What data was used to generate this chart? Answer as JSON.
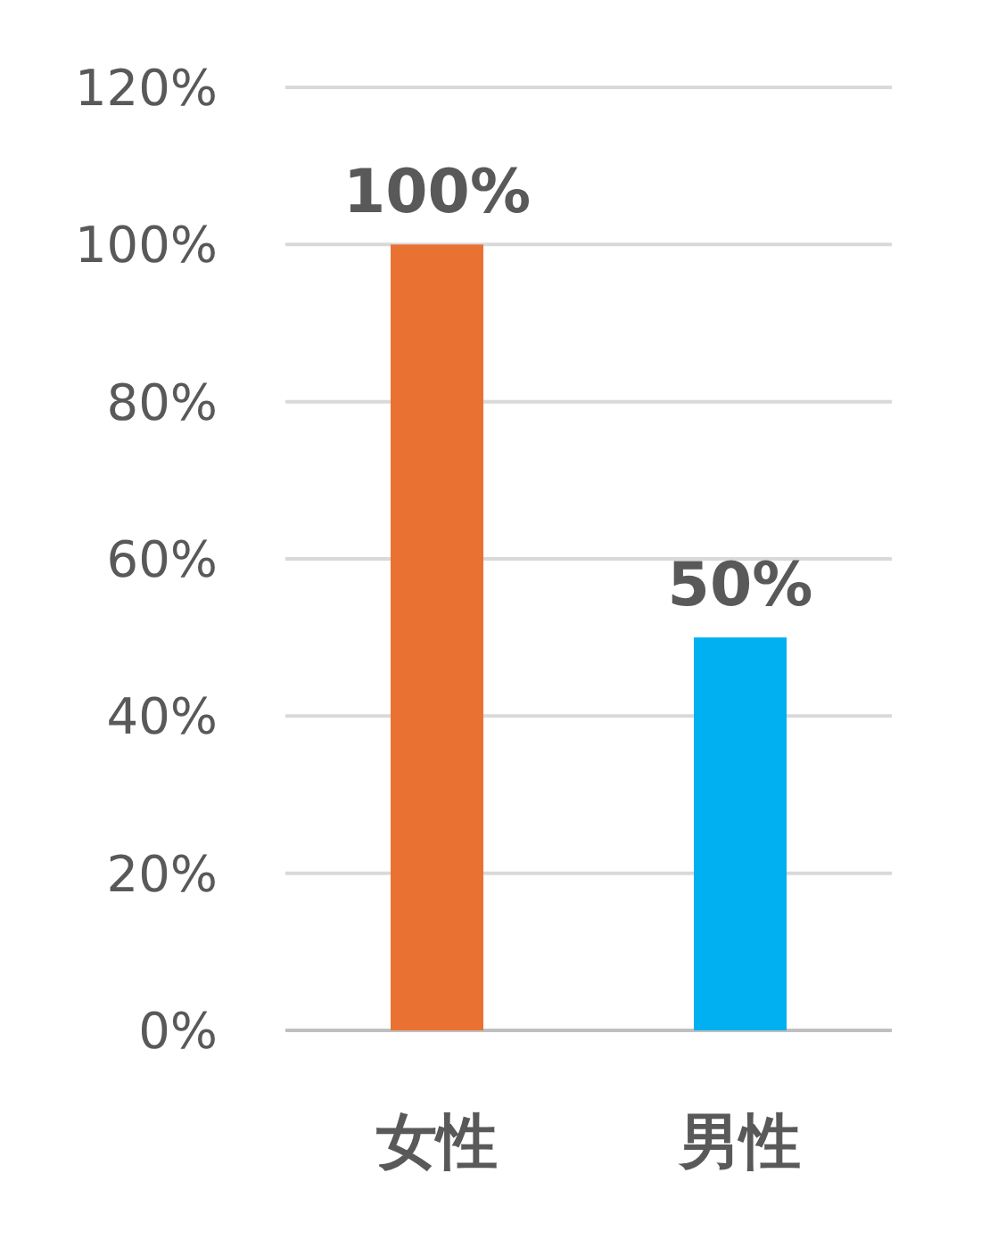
{
  "chart_data": {
    "type": "bar",
    "categories": [
      "女性",
      "男性"
    ],
    "values": [
      100,
      50
    ],
    "colors": [
      "#e97132",
      "#00b0f0"
    ],
    "value_labels": [
      "100%",
      "50%"
    ],
    "ylim": [
      0,
      120
    ],
    "yticks": [
      {
        "value": 0,
        "label": "0%"
      },
      {
        "value": 20,
        "label": "20%"
      },
      {
        "value": 40,
        "label": "40%"
      },
      {
        "value": 60,
        "label": "60%"
      },
      {
        "value": 80,
        "label": "80%"
      },
      {
        "value": 100,
        "label": "100%"
      },
      {
        "value": 120,
        "label": "120%"
      }
    ],
    "grid": "y"
  }
}
